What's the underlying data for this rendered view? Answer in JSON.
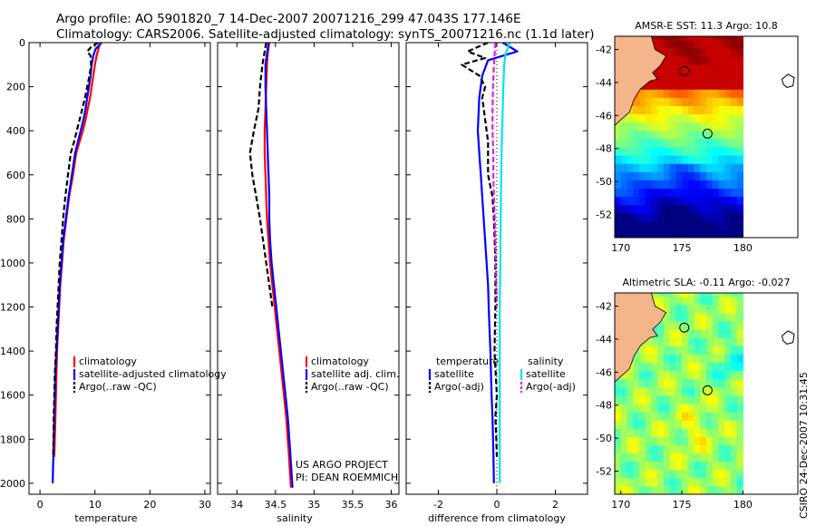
{
  "header": {
    "line1": "Argo profile: AO 5901820_7 14-Dec-2007 20071216_299 47.043S 177.146E",
    "line2": "Climatology: CARS2006. Satellite-adjusted climatology: synTS_20071216.nc (1.1d later)"
  },
  "timestamp": "CSIRO 24-Dec-2007 10:31:45",
  "colors": {
    "red": "#ff0000",
    "blue": "#0000ff",
    "black": "#000000",
    "cyan": "#00e5ee",
    "magenta": "#e619e6"
  },
  "chart_data": [
    {
      "type": "line",
      "xlabel": "temperature",
      "ylabel": "",
      "xlim": [
        -2,
        31
      ],
      "ylim": [
        0,
        2050
      ],
      "y_reversed": true,
      "xticks": [
        0,
        10,
        20,
        30
      ],
      "yticks": [
        0,
        200,
        400,
        600,
        800,
        1000,
        1200,
        1400,
        1600,
        1800,
        2000
      ],
      "legend": {
        "placement": "bottom-right",
        "entries": [
          "climatology",
          "satellite-adjusted climatology",
          "Argo(..raw -QC)"
        ]
      },
      "series": [
        {
          "name": "climatology",
          "color": "red",
          "style": "solid",
          "x": [
            11.0,
            10.6,
            10.3,
            10.0,
            9.7,
            9.4,
            9.1,
            8.7,
            8.3,
            7.8,
            7.2,
            6.6,
            6.0,
            5.3,
            4.8,
            4.3,
            4.0,
            3.7,
            3.5,
            3.3,
            3.1,
            3.0,
            2.8,
            2.6
          ],
          "y": [
            0,
            30,
            60,
            100,
            150,
            200,
            250,
            300,
            350,
            400,
            450,
            500,
            600,
            700,
            800,
            900,
            1000,
            1100,
            1200,
            1300,
            1400,
            1500,
            1700,
            1880
          ]
        },
        {
          "name": "satellite-adjusted climatology",
          "color": "blue",
          "style": "solid",
          "x": [
            11.2,
            10.1,
            9.7,
            9.4,
            9.2,
            8.9,
            8.6,
            8.3,
            7.9,
            7.4,
            6.9,
            6.4,
            5.8,
            5.2,
            4.7,
            4.2,
            3.9,
            3.6,
            3.4,
            3.2,
            3.0,
            2.8,
            2.6,
            2.4,
            2.3
          ],
          "y": [
            0,
            30,
            60,
            100,
            150,
            200,
            250,
            300,
            350,
            400,
            450,
            500,
            600,
            700,
            800,
            900,
            1000,
            1100,
            1200,
            1300,
            1400,
            1500,
            1700,
            1900,
            2000
          ]
        },
        {
          "name": "Argo(..raw -QC)",
          "color": "black",
          "style": "dashed",
          "x": [
            10.6,
            9.3,
            8.6,
            9.2,
            9.3,
            9.0,
            8.6,
            8.2,
            7.7,
            7.2,
            6.7,
            6.2,
            5.6,
            5.1,
            4.6,
            4.2,
            3.9,
            3.6,
            3.4,
            3.2,
            3.0,
            2.9,
            2.7,
            2.5,
            2.4
          ],
          "y": [
            0,
            20,
            40,
            60,
            100,
            150,
            200,
            250,
            300,
            350,
            400,
            450,
            500,
            600,
            700,
            800,
            900,
            1000,
            1100,
            1200,
            1300,
            1400,
            1500,
            1700,
            1880
          ]
        }
      ]
    },
    {
      "type": "line",
      "xlabel": "salinity",
      "ylabel": "",
      "xlim": [
        33.75,
        36.1
      ],
      "ylim": [
        0,
        2050
      ],
      "y_reversed": true,
      "xticks": [
        34,
        34.5,
        35,
        35.5,
        36
      ],
      "legend": {
        "placement": "bottom-right",
        "entries": [
          "climatology",
          "satellite adj. clim.",
          "Argo(..raw -QC)"
        ]
      },
      "annotations": [
        "US ARGO PROJECT",
        "PI: DEAN ROEMMICH"
      ],
      "series": [
        {
          "name": "climatology",
          "color": "red",
          "style": "solid",
          "x": [
            34.42,
            34.4,
            34.39,
            34.38,
            34.37,
            34.36,
            34.36,
            34.37,
            34.38,
            34.39,
            34.41,
            34.43,
            34.46,
            34.49,
            34.52,
            34.55,
            34.58,
            34.61,
            34.64,
            34.67,
            34.7
          ],
          "y": [
            0,
            50,
            100,
            200,
            300,
            400,
            500,
            600,
            700,
            800,
            900,
            1000,
            1100,
            1200,
            1300,
            1400,
            1500,
            1600,
            1700,
            1850,
            2020
          ]
        },
        {
          "name": "satellite adj. clim.",
          "color": "blue",
          "style": "solid",
          "x": [
            34.41,
            34.39,
            34.37,
            34.37,
            34.38,
            34.39,
            34.4,
            34.41,
            34.42,
            34.42,
            34.43,
            34.45,
            34.48,
            34.51,
            34.54,
            34.57,
            34.6,
            34.63,
            34.66,
            34.69,
            34.72
          ],
          "y": [
            0,
            50,
            100,
            200,
            300,
            400,
            500,
            600,
            700,
            800,
            900,
            1000,
            1100,
            1200,
            1300,
            1400,
            1500,
            1600,
            1700,
            1850,
            2020
          ]
        },
        {
          "name": "Argo(..raw -QC)",
          "color": "black",
          "style": "dashed",
          "x": [
            34.38,
            34.33,
            34.3,
            34.28,
            34.22,
            34.17,
            34.2,
            34.25,
            34.3,
            34.34,
            34.38,
            34.42,
            34.46
          ],
          "y": [
            0,
            100,
            200,
            300,
            400,
            500,
            600,
            700,
            800,
            900,
            1000,
            1100,
            1200
          ]
        }
      ]
    },
    {
      "type": "line",
      "xlabel": "difference from climatology",
      "ylabel": "",
      "xlim": [
        -3.1,
        3.1
      ],
      "ylim": [
        0,
        2050
      ],
      "y_reversed": true,
      "xticks": [
        -2,
        0,
        2
      ],
      "legend": {
        "placement": "bottom",
        "groups": [
          "temperature",
          "salinity"
        ],
        "entries": [
          "satellite",
          "Argo(-adj)",
          "satellite",
          "Argo(-adj)"
        ]
      },
      "series": [
        {
          "name": "temperature satellite",
          "color": "blue",
          "style": "solid",
          "x": [
            0.2,
            0.7,
            -0.3,
            -0.5,
            -0.6,
            -0.65,
            -0.6,
            -0.55,
            -0.5,
            -0.45,
            -0.4,
            -0.35,
            -0.3,
            -0.28,
            -0.25,
            -0.22,
            -0.2,
            -0.18,
            -0.15,
            -0.12,
            -0.1
          ],
          "y": [
            0,
            40,
            80,
            150,
            250,
            400,
            500,
            600,
            700,
            800,
            900,
            1000,
            1100,
            1200,
            1300,
            1400,
            1500,
            1600,
            1700,
            1850,
            2000
          ]
        },
        {
          "name": "temperature Argo(-adj)",
          "color": "black",
          "style": "dashed",
          "x": [
            -0.3,
            -1.0,
            -0.4,
            -1.2,
            -0.6,
            -0.4,
            -0.5,
            -0.4,
            -0.3,
            -0.3,
            -0.15,
            -0.1,
            -0.05,
            -0.05,
            -0.08,
            0.0,
            -0.05,
            -0.02,
            0.0
          ],
          "y": [
            0,
            40,
            70,
            100,
            150,
            200,
            250,
            350,
            450,
            600,
            700,
            800,
            1000,
            1200,
            1400,
            1600,
            1700,
            1800,
            1880
          ]
        },
        {
          "name": "salinity satellite",
          "color": "cyan",
          "style": "solid",
          "x": [
            0.45,
            0.3,
            0.25,
            0.22,
            0.2,
            0.18,
            0.16,
            0.15,
            0.14,
            0.13,
            0.12,
            0.12,
            0.11,
            0.1,
            0.1,
            0.1,
            0.1,
            0.1,
            0.1
          ],
          "y": [
            0,
            50,
            100,
            200,
            300,
            400,
            500,
            600,
            700,
            800,
            900,
            1000,
            1100,
            1200,
            1300,
            1400,
            1600,
            1800,
            2000
          ]
        },
        {
          "name": "salinity Argo(-adj)",
          "color": "magenta",
          "style": "dashed",
          "x": [
            -0.05,
            -0.1,
            -0.13,
            -0.15,
            -0.15,
            -0.12,
            -0.12,
            -0.1,
            -0.07,
            -0.05,
            -0.03,
            -0.02,
            0.0
          ],
          "y": [
            0,
            100,
            200,
            300,
            400,
            500,
            600,
            700,
            800,
            900,
            1000,
            1100,
            1200
          ]
        }
      ]
    },
    {
      "type": "heatmap",
      "title": "AMSR-E SST: 11.3 Argo: 10.8",
      "xlim": [
        169.5,
        184.5
      ],
      "ylim": [
        -53.4,
        -41.2
      ],
      "xticks": [
        170,
        175,
        180
      ],
      "yticks": [
        -42,
        -44,
        -46,
        -48,
        -50,
        -52
      ]
    },
    {
      "type": "heatmap",
      "title": "Altimetric SLA: -0.11 Argo: -0.027",
      "xlim": [
        169.5,
        184.5
      ],
      "ylim": [
        -53.4,
        -41.2
      ],
      "xticks": [
        170,
        175,
        180
      ],
      "yticks": [
        -42,
        -44,
        -46,
        -48,
        -50,
        -52
      ]
    }
  ]
}
